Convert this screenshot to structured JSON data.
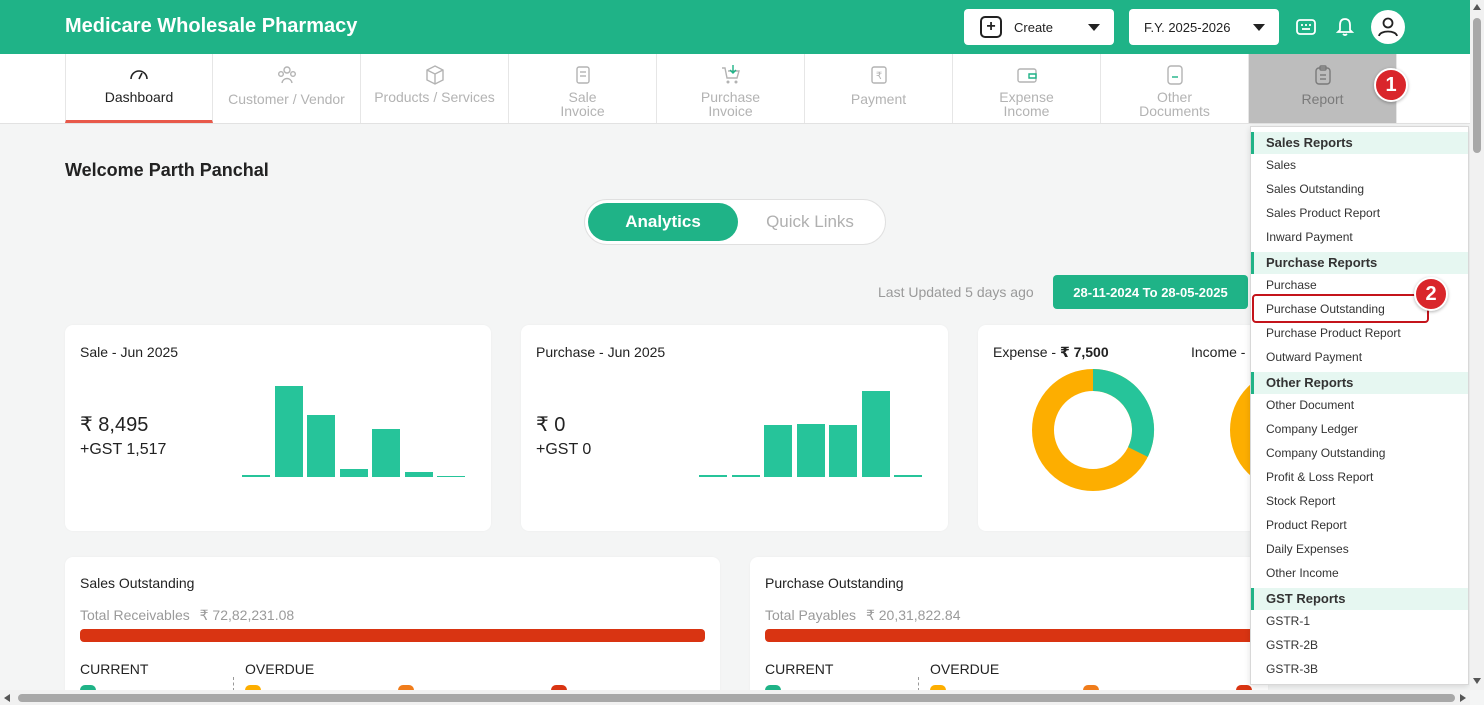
{
  "app": {
    "title": "Medicare Wholesale Pharmacy"
  },
  "header": {
    "create_label": "Create",
    "fy_label": "F.Y. 2025-2026",
    "icons": [
      "keyboard-icon",
      "bell-icon",
      "user-avatar-icon"
    ]
  },
  "nav": [
    {
      "label": "Dashboard",
      "icon": "speedometer-icon",
      "active": true
    },
    {
      "label": "Customer / Vendor",
      "icon": "people-icon"
    },
    {
      "label": "Products / Services",
      "icon": "box-icon"
    },
    {
      "label": "Sale Invoice",
      "icon": "invoice-icon"
    },
    {
      "label": "Purchase Invoice",
      "icon": "cart-icon"
    },
    {
      "label": "Payment",
      "icon": "rupee-doc-icon"
    },
    {
      "label": "Expense Income",
      "icon": "wallet-icon"
    },
    {
      "label": "Other Documents",
      "icon": "document-icon"
    },
    {
      "label": "Report",
      "icon": "clipboard-icon"
    }
  ],
  "badges": {
    "step1": "1",
    "step2": "2"
  },
  "dashboard": {
    "welcome": "Welcome Parth Panchal",
    "toggle": {
      "on": "Analytics",
      "off": "Quick Links"
    },
    "last_updated": "Last Updated 5 days ago",
    "date_range": "28-11-2024 To 28-05-2025",
    "sale_card": {
      "title": "Sale - Jun 2025",
      "amount": "₹ 8,495",
      "gst": "+GST 1,517",
      "bars": [
        0.02,
        1.0,
        0.68,
        0.09,
        0.53,
        0.05,
        0.01
      ]
    },
    "purchase_card": {
      "title": "Purchase - Jun 2025",
      "amount": "₹ 0",
      "gst": "+GST 0",
      "bars": [
        0.02,
        0.02,
        0.6,
        0.62,
        0.6,
        1.0,
        0.02
      ]
    },
    "expense_card": {
      "expense_label": "Expense -",
      "expense_value": "₹ 7,500",
      "income_label": "Income -"
    },
    "sales_outstanding": {
      "title": "Sales Outstanding",
      "total_label": "Total Receivables",
      "total_value": "₹ 72,82,231.08",
      "current": "CURRENT",
      "overdue": "OVERDUE"
    },
    "purchase_outstanding": {
      "title": "Purchase Outstanding",
      "total_label": "Total Payables",
      "total_value": "₹ 20,31,822.84",
      "current": "CURRENT",
      "overdue": "OVERDUE"
    }
  },
  "report_menu": {
    "sections": [
      {
        "heading": "Sales Reports",
        "items": [
          "Sales",
          "Sales Outstanding",
          "Sales Product Report",
          "Inward Payment"
        ]
      },
      {
        "heading": "Purchase Reports",
        "items": [
          "Purchase",
          "Purchase Outstanding",
          "Purchase Product Report",
          "Outward Payment"
        ]
      },
      {
        "heading": "Other Reports",
        "items": [
          "Other Document",
          "Company Ledger",
          "Company Outstanding",
          "Profit & Loss Report",
          "Stock Report",
          "Product Report",
          "Daily Expenses",
          "Other Income"
        ]
      },
      {
        "heading": "GST Reports",
        "items": [
          "GSTR-1",
          "GSTR-2B",
          "GSTR-3B"
        ]
      }
    ]
  },
  "colors": {
    "brand": "#1fb387",
    "bar": "#26c49a",
    "overdue": "#d93412",
    "donut_orange": "#fdae00",
    "badge": "#d9262b"
  }
}
